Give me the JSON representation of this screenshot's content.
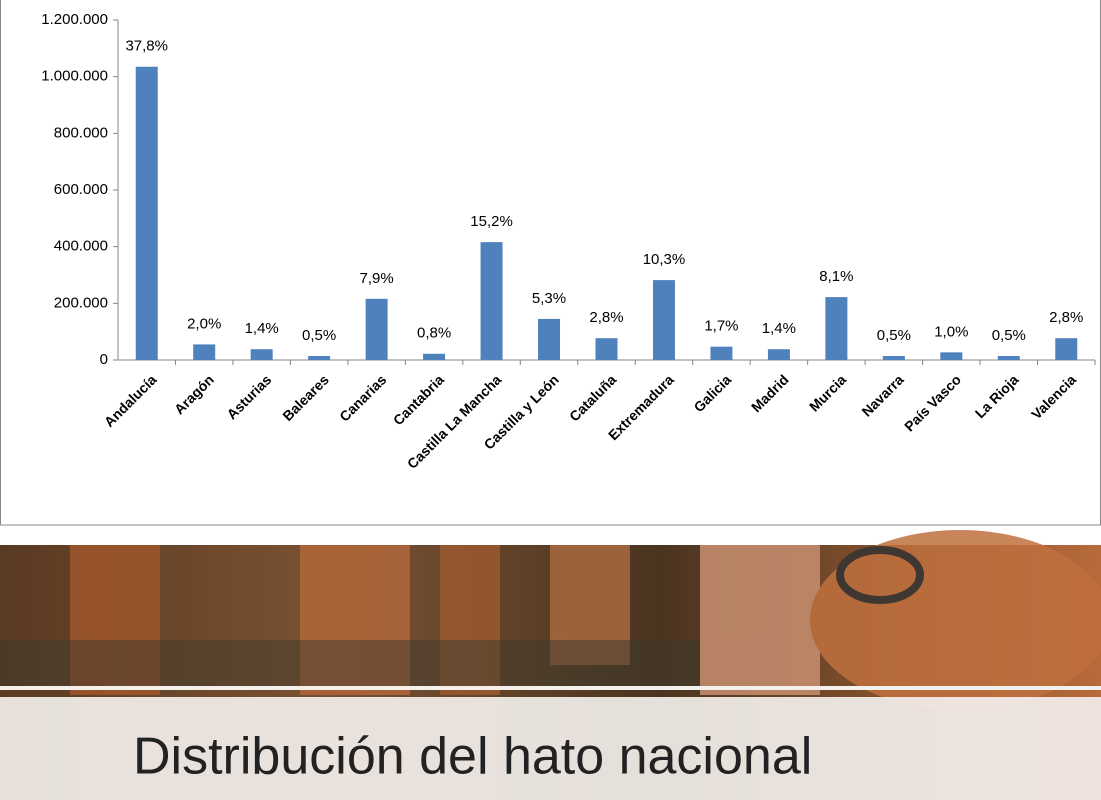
{
  "slide_title": "Distribución del hato nacional",
  "chart_data": {
    "type": "bar",
    "categories": [
      "Andalucía",
      "Aragón",
      "Asturias",
      "Baleares",
      "Canarias",
      "Cantabria",
      "Castilla La Mancha",
      "Castilla y León",
      "Cataluña",
      "Extremadura",
      "Galicia",
      "Madrid",
      "Murcia",
      "Navarra",
      "País Vasco",
      "La Rioja",
      "Valencia"
    ],
    "values": [
      1035000,
      55000,
      38000,
      14000,
      216000,
      22000,
      416000,
      145000,
      77000,
      282000,
      47000,
      38000,
      222000,
      14000,
      27000,
      14000,
      77000
    ],
    "value_labels": [
      {
        "value": 37.8,
        "label": "37,8%"
      },
      {
        "value": 2.0,
        "label": "2,0%"
      },
      {
        "value": 1.4,
        "label": "1,4%"
      },
      {
        "value": 0.5,
        "label": "0,5%"
      },
      {
        "value": 7.9,
        "label": "7,9%"
      },
      {
        "value": 0.8,
        "label": "0,8%"
      },
      {
        "value": 15.2,
        "label": "15,2%"
      },
      {
        "value": 5.3,
        "label": "5,3%"
      },
      {
        "value": 2.8,
        "label": "2,8%"
      },
      {
        "value": 10.3,
        "label": "10,3%"
      },
      {
        "value": 1.7,
        "label": "1,7%"
      },
      {
        "value": 1.4,
        "label": "1,4%"
      },
      {
        "value": 8.1,
        "label": "8,1%"
      },
      {
        "value": 0.5,
        "label": "0,5%"
      },
      {
        "value": 1.0,
        "label": "1,0%"
      },
      {
        "value": 0.5,
        "label": "0,5%"
      },
      {
        "value": 2.8,
        "label": "2,8%"
      }
    ],
    "color": "#4f81bd",
    "ylim": [
      0,
      1200000
    ],
    "yticks": [
      0,
      {
        "value": 200000,
        "label": "200.000"
      },
      {
        "value": 400000,
        "label": "400.000"
      },
      {
        "value": 600000,
        "label": "600.000"
      },
      {
        "value": 800000,
        "label": "800.000"
      },
      {
        "value": 1000000,
        "label": "1.000.000"
      },
      {
        "value": 1200000,
        "label": "1.200.000"
      }
    ],
    "grid": false
  }
}
